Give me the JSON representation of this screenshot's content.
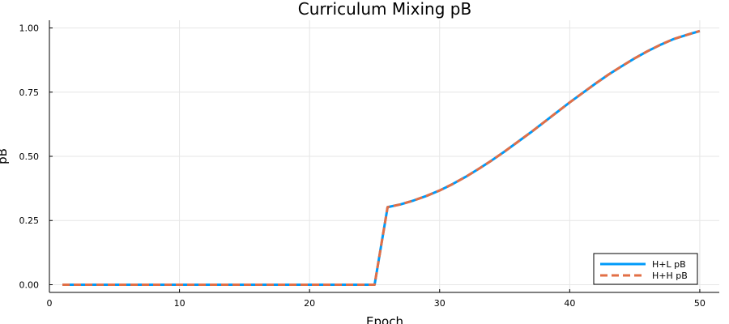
{
  "chart_data": {
    "type": "line",
    "title": "Curriculum Mixing pB",
    "xlabel": "Epoch",
    "ylabel": "pB",
    "xlim": [
      0,
      51.5
    ],
    "ylim": [
      -0.03,
      1.03
    ],
    "xticks": [
      0,
      10,
      20,
      30,
      40,
      50
    ],
    "xtick_labels": [
      "0",
      "10",
      "20",
      "30",
      "40",
      "50"
    ],
    "yticks": [
      0,
      0.25,
      0.5,
      0.75,
      1.0
    ],
    "ytick_labels": [
      "0.00",
      "0.25",
      "0.50",
      "0.75",
      "1.00"
    ],
    "grid": true,
    "legend_position": "bottom-right",
    "x": [
      1,
      2,
      3,
      4,
      5,
      6,
      7,
      8,
      9,
      10,
      11,
      12,
      13,
      14,
      15,
      16,
      17,
      18,
      19,
      20,
      21,
      22,
      23,
      24,
      25,
      26,
      27,
      28,
      29,
      30,
      31,
      32,
      33,
      34,
      35,
      36,
      37,
      38,
      39,
      40,
      41,
      42,
      43,
      44,
      45,
      46,
      47,
      48,
      49,
      50
    ],
    "series": [
      {
        "name": "H+L pB",
        "color": "#009af9",
        "dash": "solid",
        "values": [
          0,
          0,
          0,
          0,
          0,
          0,
          0,
          0,
          0,
          0,
          0,
          0,
          0,
          0,
          0,
          0,
          0,
          0,
          0,
          0,
          0,
          0,
          0,
          0,
          0,
          0.302,
          0.313,
          0.328,
          0.346,
          0.367,
          0.392,
          0.42,
          0.451,
          0.484,
          0.519,
          0.556,
          0.593,
          0.632,
          0.671,
          0.71,
          0.747,
          0.784,
          0.819,
          0.851,
          0.882,
          0.91,
          0.935,
          0.957,
          0.973,
          0.988
        ]
      },
      {
        "name": "H+H pB",
        "color": "#e26f46",
        "dash": "dashed",
        "values": [
          0,
          0,
          0,
          0,
          0,
          0,
          0,
          0,
          0,
          0,
          0,
          0,
          0,
          0,
          0,
          0,
          0,
          0,
          0,
          0,
          0,
          0,
          0,
          0,
          0,
          0.302,
          0.313,
          0.328,
          0.346,
          0.367,
          0.392,
          0.42,
          0.451,
          0.484,
          0.519,
          0.556,
          0.593,
          0.632,
          0.671,
          0.71,
          0.747,
          0.784,
          0.819,
          0.851,
          0.882,
          0.91,
          0.935,
          0.957,
          0.973,
          0.988
        ]
      }
    ]
  }
}
